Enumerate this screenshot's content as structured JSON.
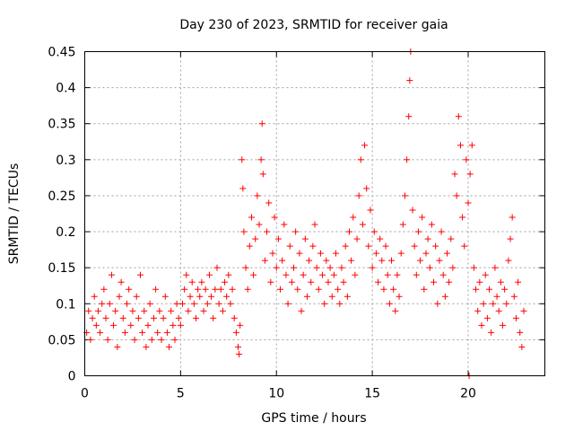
{
  "chart_data": {
    "type": "scatter",
    "title": "Day 230 of 2023, SRMTID for receiver gaia",
    "xlabel": "GPS time / hours",
    "ylabel": "SRMTID / TECUs",
    "xlim": [
      0,
      24
    ],
    "ylim": [
      0,
      0.45
    ],
    "xticks": [
      0,
      5,
      10,
      15,
      20
    ],
    "xtick_labels": [
      "0",
      "5",
      "10",
      "15",
      "20"
    ],
    "yticks": [
      0,
      0.05,
      0.1,
      0.15,
      0.2,
      0.25,
      0.3,
      0.35,
      0.4,
      0.45
    ],
    "ytick_labels": [
      "0",
      "0.05",
      "0.1",
      "0.15",
      "0.2",
      "0.25",
      "0.3",
      "0.35",
      "0.4",
      "0.45"
    ],
    "grid": true,
    "marker": "+",
    "color": "#ff0000",
    "series": [
      {
        "name": "SRMTID",
        "points": [
          [
            0.1,
            0.06
          ],
          [
            0.2,
            0.09
          ],
          [
            0.3,
            0.05
          ],
          [
            0.4,
            0.08
          ],
          [
            0.5,
            0.11
          ],
          [
            0.6,
            0.07
          ],
          [
            0.7,
            0.09
          ],
          [
            0.8,
            0.06
          ],
          [
            0.9,
            0.1
          ],
          [
            1.0,
            0.12
          ],
          [
            1.1,
            0.08
          ],
          [
            1.2,
            0.05
          ],
          [
            1.3,
            0.1
          ],
          [
            1.4,
            0.14
          ],
          [
            1.5,
            0.07
          ],
          [
            1.6,
            0.09
          ],
          [
            1.7,
            0.04
          ],
          [
            1.8,
            0.11
          ],
          [
            1.9,
            0.13
          ],
          [
            2.0,
            0.08
          ],
          [
            2.1,
            0.06
          ],
          [
            2.2,
            0.1
          ],
          [
            2.3,
            0.12
          ],
          [
            2.4,
            0.07
          ],
          [
            2.5,
            0.09
          ],
          [
            2.6,
            0.05
          ],
          [
            2.7,
            0.11
          ],
          [
            2.8,
            0.08
          ],
          [
            2.9,
            0.14
          ],
          [
            3.0,
            0.06
          ],
          [
            3.1,
            0.09
          ],
          [
            3.2,
            0.04
          ],
          [
            3.3,
            0.07
          ],
          [
            3.4,
            0.1
          ],
          [
            3.5,
            0.05
          ],
          [
            3.6,
            0.08
          ],
          [
            3.7,
            0.12
          ],
          [
            3.8,
            0.06
          ],
          [
            3.9,
            0.09
          ],
          [
            4.0,
            0.05
          ],
          [
            4.1,
            0.08
          ],
          [
            4.2,
            0.11
          ],
          [
            4.3,
            0.06
          ],
          [
            4.4,
            0.04
          ],
          [
            4.5,
            0.09
          ],
          [
            4.6,
            0.07
          ],
          [
            4.7,
            0.05
          ],
          [
            4.8,
            0.1
          ],
          [
            4.9,
            0.08
          ],
          [
            5.0,
            0.07
          ],
          [
            5.1,
            0.1
          ],
          [
            5.2,
            0.12
          ],
          [
            5.3,
            0.14
          ],
          [
            5.4,
            0.09
          ],
          [
            5.5,
            0.11
          ],
          [
            5.6,
            0.13
          ],
          [
            5.7,
            0.1
          ],
          [
            5.8,
            0.08
          ],
          [
            5.9,
            0.12
          ],
          [
            6.0,
            0.11
          ],
          [
            6.1,
            0.13
          ],
          [
            6.2,
            0.09
          ],
          [
            6.3,
            0.12
          ],
          [
            6.4,
            0.1
          ],
          [
            6.5,
            0.14
          ],
          [
            6.6,
            0.11
          ],
          [
            6.7,
            0.08
          ],
          [
            6.8,
            0.12
          ],
          [
            6.9,
            0.15
          ],
          [
            7.0,
            0.1
          ],
          [
            7.1,
            0.12
          ],
          [
            7.2,
            0.09
          ],
          [
            7.3,
            0.13
          ],
          [
            7.4,
            0.11
          ],
          [
            7.5,
            0.14
          ],
          [
            7.6,
            0.1
          ],
          [
            7.7,
            0.12
          ],
          [
            7.8,
            0.08
          ],
          [
            7.9,
            0.06
          ],
          [
            8.0,
            0.04
          ],
          [
            8.05,
            0.03
          ],
          [
            8.1,
            0.07
          ],
          [
            8.2,
            0.3
          ],
          [
            8.25,
            0.26
          ],
          [
            8.3,
            0.2
          ],
          [
            8.4,
            0.15
          ],
          [
            8.5,
            0.12
          ],
          [
            8.6,
            0.18
          ],
          [
            8.7,
            0.22
          ],
          [
            8.8,
            0.14
          ],
          [
            8.9,
            0.19
          ],
          [
            9.0,
            0.25
          ],
          [
            9.1,
            0.21
          ],
          [
            9.2,
            0.3
          ],
          [
            9.25,
            0.35
          ],
          [
            9.3,
            0.28
          ],
          [
            9.4,
            0.16
          ],
          [
            9.5,
            0.2
          ],
          [
            9.6,
            0.24
          ],
          [
            9.7,
            0.13
          ],
          [
            9.8,
            0.17
          ],
          [
            9.9,
            0.22
          ],
          [
            10.0,
            0.15
          ],
          [
            10.1,
            0.19
          ],
          [
            10.2,
            0.12
          ],
          [
            10.3,
            0.16
          ],
          [
            10.4,
            0.21
          ],
          [
            10.5,
            0.14
          ],
          [
            10.6,
            0.1
          ],
          [
            10.7,
            0.18
          ],
          [
            10.8,
            0.13
          ],
          [
            10.9,
            0.15
          ],
          [
            11.0,
            0.2
          ],
          [
            11.1,
            0.12
          ],
          [
            11.2,
            0.17
          ],
          [
            11.3,
            0.09
          ],
          [
            11.4,
            0.14
          ],
          [
            11.5,
            0.19
          ],
          [
            11.6,
            0.11
          ],
          [
            11.7,
            0.16
          ],
          [
            11.8,
            0.13
          ],
          [
            11.9,
            0.18
          ],
          [
            12.0,
            0.21
          ],
          [
            12.1,
            0.15
          ],
          [
            12.2,
            0.12
          ],
          [
            12.3,
            0.17
          ],
          [
            12.4,
            0.14
          ],
          [
            12.5,
            0.1
          ],
          [
            12.6,
            0.16
          ],
          [
            12.7,
            0.13
          ],
          [
            12.8,
            0.15
          ],
          [
            12.9,
            0.11
          ],
          [
            13.0,
            0.14
          ],
          [
            13.1,
            0.17
          ],
          [
            13.2,
            0.12
          ],
          [
            13.3,
            0.1
          ],
          [
            13.4,
            0.15
          ],
          [
            13.5,
            0.13
          ],
          [
            13.6,
            0.18
          ],
          [
            13.7,
            0.11
          ],
          [
            13.8,
            0.2
          ],
          [
            13.9,
            0.16
          ],
          [
            14.0,
            0.22
          ],
          [
            14.1,
            0.14
          ],
          [
            14.2,
            0.19
          ],
          [
            14.3,
            0.25
          ],
          [
            14.4,
            0.3
          ],
          [
            14.5,
            0.21
          ],
          [
            14.6,
            0.32
          ],
          [
            14.7,
            0.26
          ],
          [
            14.8,
            0.18
          ],
          [
            14.9,
            0.23
          ],
          [
            15.0,
            0.15
          ],
          [
            15.1,
            0.2
          ],
          [
            15.2,
            0.17
          ],
          [
            15.3,
            0.13
          ],
          [
            15.4,
            0.19
          ],
          [
            15.5,
            0.16
          ],
          [
            15.6,
            0.12
          ],
          [
            15.7,
            0.18
          ],
          [
            15.8,
            0.14
          ],
          [
            15.9,
            0.1
          ],
          [
            16.0,
            0.16
          ],
          [
            16.1,
            0.12
          ],
          [
            16.2,
            0.09
          ],
          [
            16.3,
            0.14
          ],
          [
            16.4,
            0.11
          ],
          [
            16.5,
            0.17
          ],
          [
            16.6,
            0.21
          ],
          [
            16.7,
            0.25
          ],
          [
            16.8,
            0.3
          ],
          [
            16.9,
            0.36
          ],
          [
            16.95,
            0.41
          ],
          [
            17.0,
            0.45
          ],
          [
            17.1,
            0.23
          ],
          [
            17.2,
            0.18
          ],
          [
            17.3,
            0.14
          ],
          [
            17.4,
            0.2
          ],
          [
            17.5,
            0.16
          ],
          [
            17.6,
            0.22
          ],
          [
            17.7,
            0.12
          ],
          [
            17.8,
            0.17
          ],
          [
            17.9,
            0.19
          ],
          [
            18.0,
            0.15
          ],
          [
            18.1,
            0.21
          ],
          [
            18.2,
            0.13
          ],
          [
            18.3,
            0.18
          ],
          [
            18.4,
            0.1
          ],
          [
            18.5,
            0.16
          ],
          [
            18.6,
            0.2
          ],
          [
            18.7,
            0.14
          ],
          [
            18.8,
            0.11
          ],
          [
            18.9,
            0.17
          ],
          [
            19.0,
            0.13
          ],
          [
            19.1,
            0.19
          ],
          [
            19.2,
            0.15
          ],
          [
            19.3,
            0.28
          ],
          [
            19.4,
            0.25
          ],
          [
            19.5,
            0.36
          ],
          [
            19.6,
            0.32
          ],
          [
            19.7,
            0.22
          ],
          [
            19.8,
            0.18
          ],
          [
            19.9,
            0.3
          ],
          [
            20.0,
            0.24
          ],
          [
            20.05,
            0.0
          ],
          [
            20.1,
            0.28
          ],
          [
            20.2,
            0.32
          ],
          [
            20.3,
            0.15
          ],
          [
            20.4,
            0.12
          ],
          [
            20.5,
            0.09
          ],
          [
            20.6,
            0.13
          ],
          [
            20.7,
            0.07
          ],
          [
            20.8,
            0.1
          ],
          [
            20.9,
            0.14
          ],
          [
            21.0,
            0.08
          ],
          [
            21.1,
            0.12
          ],
          [
            21.2,
            0.06
          ],
          [
            21.3,
            0.1
          ],
          [
            21.4,
            0.15
          ],
          [
            21.5,
            0.11
          ],
          [
            21.6,
            0.09
          ],
          [
            21.7,
            0.13
          ],
          [
            21.8,
            0.07
          ],
          [
            21.9,
            0.12
          ],
          [
            22.0,
            0.1
          ],
          [
            22.1,
            0.16
          ],
          [
            22.2,
            0.19
          ],
          [
            22.3,
            0.22
          ],
          [
            22.4,
            0.11
          ],
          [
            22.5,
            0.08
          ],
          [
            22.6,
            0.13
          ],
          [
            22.7,
            0.06
          ],
          [
            22.8,
            0.04
          ],
          [
            22.9,
            0.09
          ]
        ]
      }
    ]
  }
}
